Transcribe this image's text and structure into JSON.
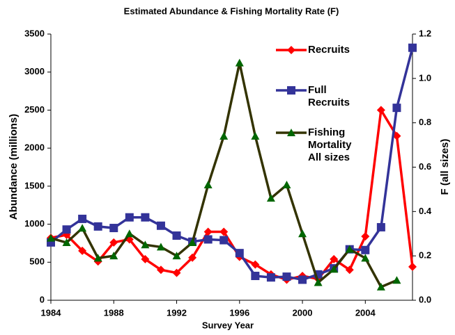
{
  "chart_data": {
    "type": "line",
    "title": "Estimated Abundance & Fishing Mortality Rate (F)",
    "x_label": "Survey Year",
    "y_label": "Abundance (millions)",
    "y2_label": "F (all sizes)",
    "x": [
      1984,
      1985,
      1986,
      1987,
      1988,
      1989,
      1990,
      1991,
      1992,
      1993,
      1994,
      1995,
      1996,
      1997,
      1998,
      1999,
      2000,
      2001,
      2002,
      2003,
      2004,
      2005,
      2006,
      2007
    ],
    "xlim": [
      1984,
      2007
    ],
    "xticks": [
      1984,
      1988,
      1992,
      1996,
      2000,
      2004
    ],
    "ylim": [
      0,
      3500
    ],
    "yticks": [
      0,
      500,
      1000,
      1500,
      2000,
      2500,
      3000,
      3500
    ],
    "y2lim": [
      0,
      1.2
    ],
    "y2ticks": [
      {
        "value": 0,
        "label": "0.0"
      },
      0.2,
      0.4,
      0.6,
      0.8,
      {
        "value": 1,
        "label": "1.0"
      },
      1.2
    ],
    "legend": "top-right",
    "series": [
      {
        "name": "Recruits",
        "color": "#ff0000",
        "marker": "diamond",
        "values": [
          820,
          860,
          650,
          510,
          760,
          800,
          540,
          400,
          360,
          560,
          900,
          900,
          570,
          470,
          340,
          270,
          320,
          280,
          540,
          400,
          840,
          2500,
          2160,
          440
        ]
      },
      {
        "name": "Full Recruits",
        "color": "#333399",
        "marker": "square",
        "values": [
          760,
          930,
          1070,
          970,
          950,
          1090,
          1090,
          980,
          850,
          770,
          800,
          790,
          620,
          320,
          300,
          310,
          270,
          340,
          420,
          670,
          660,
          960,
          2530,
          3320
        ]
      },
      {
        "name": "Fishing Mortality All sizes",
        "color": "#333300",
        "marker": "triangle",
        "marker_color": "#006600",
        "axis": "y2",
        "values": [
          0.28,
          0.26,
          0.325,
          0.19,
          0.2,
          0.3,
          0.25,
          0.24,
          0.2,
          0.26,
          0.52,
          0.74,
          1.07,
          0.74,
          0.46,
          0.52,
          0.3,
          0.08,
          0.14,
          0.23,
          0.19,
          0.06,
          0.09,
          null
        ]
      }
    ]
  }
}
